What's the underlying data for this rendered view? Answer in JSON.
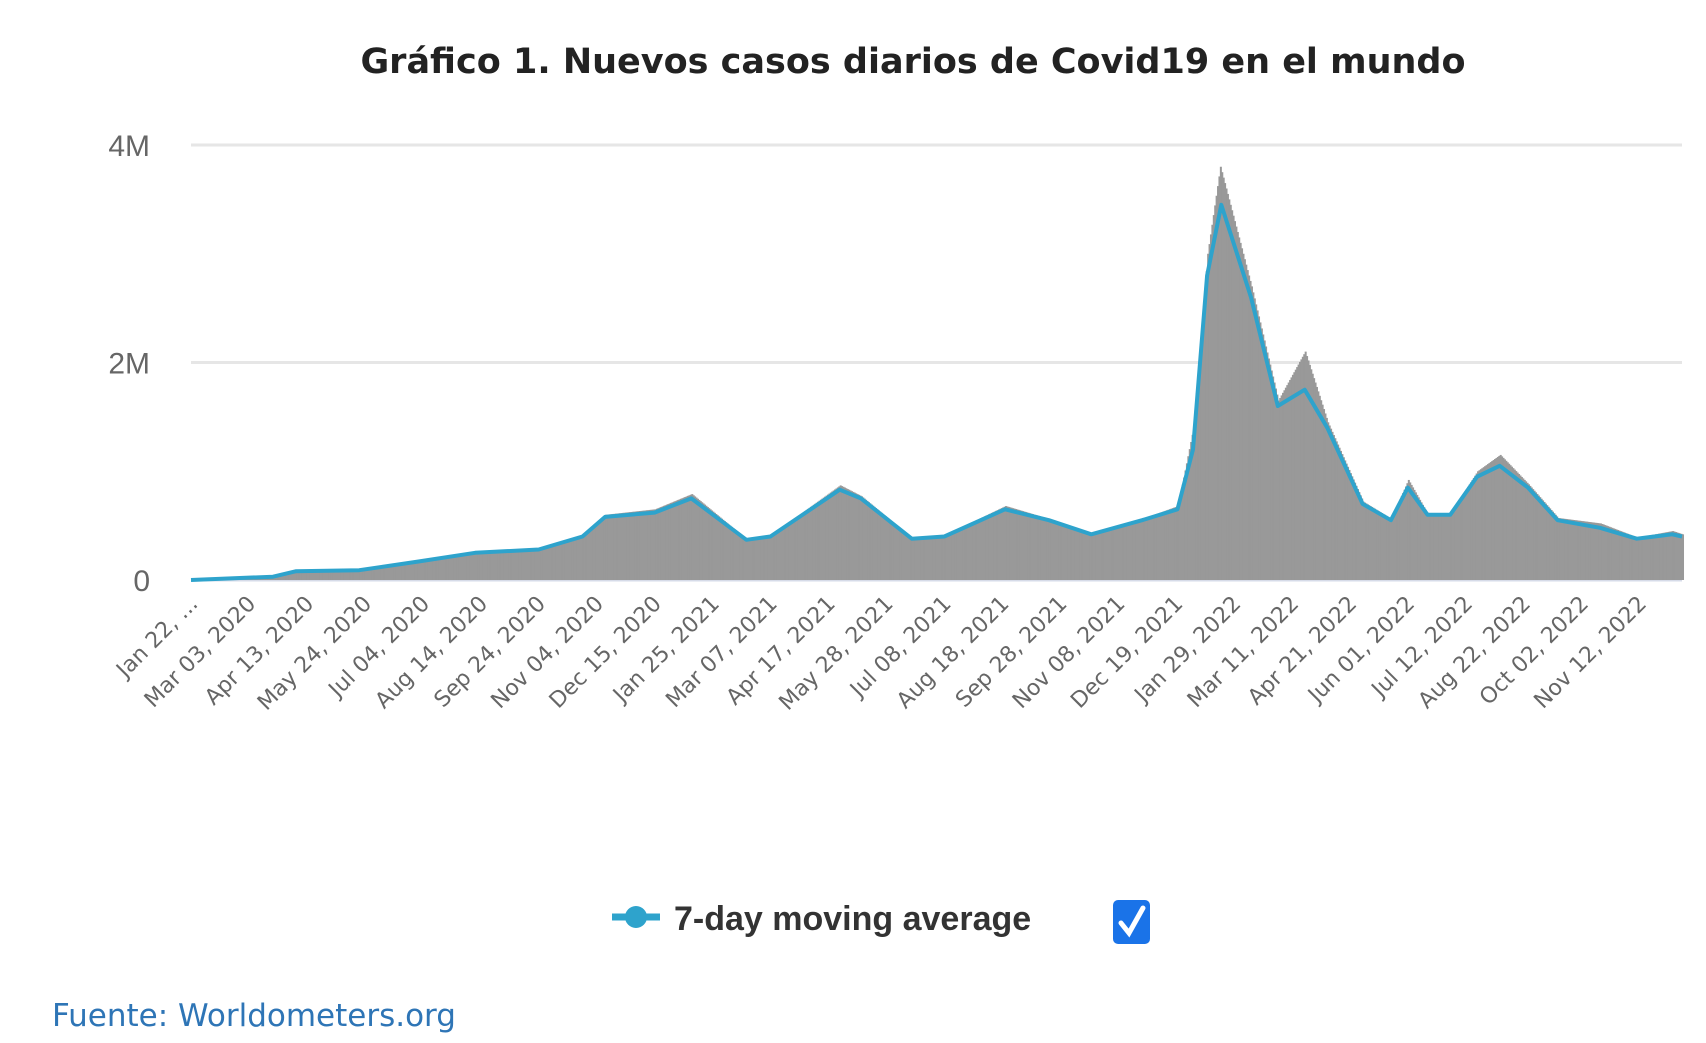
{
  "chart_data": {
    "type": "bar",
    "title": "Gráfico 1. Nuevos casos diarios de Covid19 en el mundo",
    "xlabel": "",
    "ylabel": "",
    "x_range": [
      "2020-01-22",
      "2022-12-12"
    ],
    "ylim": [
      0,
      4000000
    ],
    "y_ticks": [
      {
        "value": 0,
        "label": "0"
      },
      {
        "value": 2000000,
        "label": "2M"
      },
      {
        "value": 4000000,
        "label": "4M"
      }
    ],
    "x_ticks": [
      {
        "date": "2020-01-22",
        "label": "Jan 22, ..."
      },
      {
        "date": "2020-03-03",
        "label": "Mar 03, 2020"
      },
      {
        "date": "2020-04-13",
        "label": "Apr 13, 2020"
      },
      {
        "date": "2020-05-24",
        "label": "May 24, 2020"
      },
      {
        "date": "2020-07-04",
        "label": "Jul 04, 2020"
      },
      {
        "date": "2020-08-14",
        "label": "Aug 14, 2020"
      },
      {
        "date": "2020-09-24",
        "label": "Sep 24, 2020"
      },
      {
        "date": "2020-11-04",
        "label": "Nov 04, 2020"
      },
      {
        "date": "2020-12-15",
        "label": "Dec 15, 2020"
      },
      {
        "date": "2021-01-25",
        "label": "Jan 25, 2021"
      },
      {
        "date": "2021-03-07",
        "label": "Mar 07, 2021"
      },
      {
        "date": "2021-04-17",
        "label": "Apr 17, 2021"
      },
      {
        "date": "2021-05-28",
        "label": "May 28, 2021"
      },
      {
        "date": "2021-07-08",
        "label": "Jul 08, 2021"
      },
      {
        "date": "2021-08-18",
        "label": "Aug 18, 2021"
      },
      {
        "date": "2021-09-28",
        "label": "Sep 28, 2021"
      },
      {
        "date": "2021-11-08",
        "label": "Nov 08, 2021"
      },
      {
        "date": "2021-12-19",
        "label": "Dec 19, 2021"
      },
      {
        "date": "2022-01-29",
        "label": "Jan 29, 2022"
      },
      {
        "date": "2022-03-11",
        "label": "Mar 11, 2022"
      },
      {
        "date": "2022-04-21",
        "label": "Apr 21, 2022"
      },
      {
        "date": "2022-06-01",
        "label": "Jun 01, 2022"
      },
      {
        "date": "2022-07-12",
        "label": "Jul 12, 2022"
      },
      {
        "date": "2022-08-22",
        "label": "Aug 22, 2022"
      },
      {
        "date": "2022-10-02",
        "label": "Oct 02, 2022"
      },
      {
        "date": "2022-11-12",
        "label": "Nov 12, 2022"
      }
    ],
    "grid": true,
    "series": [
      {
        "type": "bar",
        "color": "#999999",
        "points": [
          [
            "2020-01-22",
            0
          ],
          [
            "2020-03-20",
            30000
          ],
          [
            "2020-04-05",
            85000
          ],
          [
            "2020-05-20",
            95000
          ],
          [
            "2020-07-01",
            180000
          ],
          [
            "2020-08-10",
            260000
          ],
          [
            "2020-09-24",
            290000
          ],
          [
            "2020-10-25",
            410000
          ],
          [
            "2020-11-10",
            600000
          ],
          [
            "2020-12-15",
            650000
          ],
          [
            "2021-01-10",
            790000
          ],
          [
            "2021-02-18",
            370000
          ],
          [
            "2021-03-07",
            410000
          ],
          [
            "2021-04-25",
            870000
          ],
          [
            "2021-05-10",
            770000
          ],
          [
            "2021-06-15",
            380000
          ],
          [
            "2021-07-08",
            410000
          ],
          [
            "2021-08-20",
            680000
          ],
          [
            "2021-09-20",
            560000
          ],
          [
            "2021-10-20",
            420000
          ],
          [
            "2021-11-25",
            560000
          ],
          [
            "2021-12-20",
            680000
          ],
          [
            "2021-12-31",
            1400000
          ],
          [
            "2022-01-10",
            3000000
          ],
          [
            "2022-01-19",
            3800000
          ],
          [
            "2022-02-10",
            2700000
          ],
          [
            "2022-03-01",
            1650000
          ],
          [
            "2022-03-20",
            2100000
          ],
          [
            "2022-04-05",
            1450000
          ],
          [
            "2022-04-30",
            720000
          ],
          [
            "2022-05-20",
            560000
          ],
          [
            "2022-06-01",
            920000
          ],
          [
            "2022-06-15",
            600000
          ],
          [
            "2022-07-01",
            610000
          ],
          [
            "2022-07-20",
            1000000
          ],
          [
            "2022-08-05",
            1150000
          ],
          [
            "2022-08-25",
            880000
          ],
          [
            "2022-09-15",
            570000
          ],
          [
            "2022-10-15",
            520000
          ],
          [
            "2022-11-10",
            390000
          ],
          [
            "2022-12-05",
            450000
          ],
          [
            "2022-12-12",
            420000
          ]
        ]
      },
      {
        "type": "line",
        "name": "7-day moving average",
        "color": "#2ea3cc",
        "points": [
          [
            "2020-01-22",
            0
          ],
          [
            "2020-03-20",
            30000
          ],
          [
            "2020-04-05",
            80000
          ],
          [
            "2020-05-20",
            90000
          ],
          [
            "2020-07-01",
            170000
          ],
          [
            "2020-08-10",
            250000
          ],
          [
            "2020-09-24",
            280000
          ],
          [
            "2020-10-25",
            400000
          ],
          [
            "2020-11-10",
            580000
          ],
          [
            "2020-12-15",
            620000
          ],
          [
            "2021-01-10",
            750000
          ],
          [
            "2021-02-18",
            370000
          ],
          [
            "2021-03-07",
            400000
          ],
          [
            "2021-04-25",
            830000
          ],
          [
            "2021-05-10",
            750000
          ],
          [
            "2021-06-15",
            380000
          ],
          [
            "2021-07-08",
            400000
          ],
          [
            "2021-08-20",
            650000
          ],
          [
            "2021-09-20",
            550000
          ],
          [
            "2021-10-20",
            420000
          ],
          [
            "2021-11-25",
            550000
          ],
          [
            "2021-12-20",
            650000
          ],
          [
            "2021-12-31",
            1200000
          ],
          [
            "2022-01-10",
            2800000
          ],
          [
            "2022-01-20",
            3450000
          ],
          [
            "2022-02-10",
            2600000
          ],
          [
            "2022-03-01",
            1600000
          ],
          [
            "2022-03-20",
            1750000
          ],
          [
            "2022-04-05",
            1400000
          ],
          [
            "2022-04-30",
            700000
          ],
          [
            "2022-05-20",
            550000
          ],
          [
            "2022-06-01",
            850000
          ],
          [
            "2022-06-15",
            600000
          ],
          [
            "2022-07-01",
            600000
          ],
          [
            "2022-07-20",
            950000
          ],
          [
            "2022-08-05",
            1050000
          ],
          [
            "2022-08-25",
            850000
          ],
          [
            "2022-09-15",
            550000
          ],
          [
            "2022-10-15",
            480000
          ],
          [
            "2022-11-10",
            380000
          ],
          [
            "2022-12-05",
            420000
          ],
          [
            "2022-12-12",
            400000
          ]
        ]
      }
    ],
    "legend": {
      "label": "7-day moving average",
      "checked": true,
      "placement": "bottom"
    }
  },
  "source": "Fuente: Worldometers.org"
}
